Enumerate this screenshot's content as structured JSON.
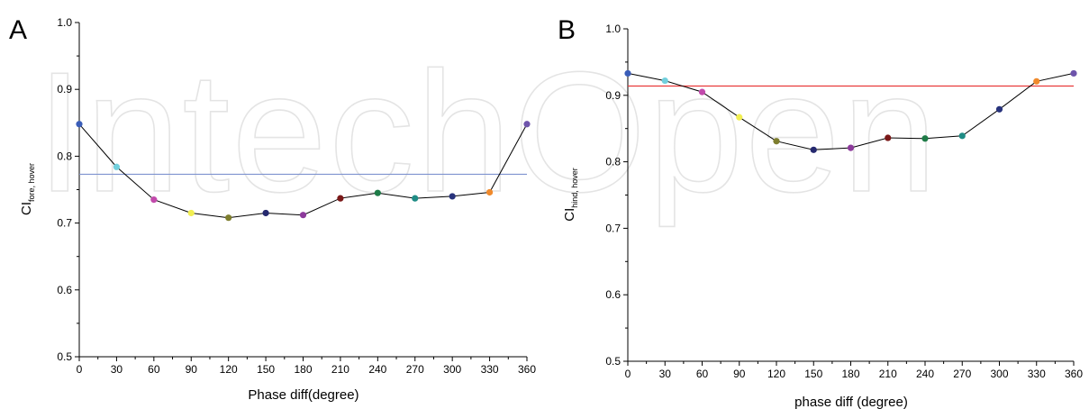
{
  "watermark": "IntechOpen",
  "chart_data": [
    {
      "panel": "A",
      "type": "line",
      "xlabel": "Phase diff(degree)",
      "ylabel_main": "CI",
      "ylabel_sub": "fore, hover",
      "xlim": [
        0,
        360
      ],
      "ylim": [
        0.5,
        1.0
      ],
      "xticks": [
        0,
        30,
        60,
        90,
        120,
        150,
        180,
        210,
        240,
        270,
        300,
        330,
        360
      ],
      "yticks": [
        "0.5",
        "0.6",
        "0.7",
        "0.8",
        "0.9",
        "1.0"
      ],
      "x": [
        0,
        30,
        60,
        90,
        120,
        150,
        180,
        210,
        240,
        270,
        300,
        330,
        360
      ],
      "y": [
        0.848,
        0.784,
        0.735,
        0.715,
        0.708,
        0.715,
        0.712,
        0.737,
        0.745,
        0.737,
        0.74,
        0.746,
        0.848
      ],
      "point_colors": [
        "#3a5db8",
        "#72d0dd",
        "#c24aac",
        "#f2ef52",
        "#7e7e2e",
        "#25296f",
        "#8c3a9b",
        "#7a1818",
        "#1e7b47",
        "#1f8c85",
        "#28337c",
        "#f08a2c",
        "#6e54ab"
      ],
      "line_color": "#000000",
      "reference_line": {
        "y": 0.773,
        "color": "#7f94d0"
      },
      "grid": false
    },
    {
      "panel": "B",
      "type": "line",
      "xlabel": "phase diff (degree)",
      "ylabel_main": "CI",
      "ylabel_sub": "hind, hover",
      "xlim": [
        0,
        360
      ],
      "ylim": [
        0.5,
        1.0
      ],
      "xticks": [
        0,
        30,
        60,
        90,
        120,
        150,
        180,
        210,
        240,
        270,
        300,
        330,
        360
      ],
      "yticks": [
        "0.5",
        "0.6",
        "0.7",
        "0.8",
        "0.9",
        "1.0"
      ],
      "x": [
        0,
        30,
        60,
        90,
        120,
        150,
        180,
        210,
        240,
        270,
        300,
        330,
        360
      ],
      "y": [
        0.933,
        0.922,
        0.905,
        0.867,
        0.831,
        0.818,
        0.821,
        0.836,
        0.835,
        0.839,
        0.879,
        0.921,
        0.933
      ],
      "point_colors": [
        "#3a5db8",
        "#72d0dd",
        "#c24aac",
        "#f2ef52",
        "#7e7e2e",
        "#25296f",
        "#8c3a9b",
        "#7a1818",
        "#1e7b47",
        "#1f8c85",
        "#28337c",
        "#f08a2c",
        "#6e54ab"
      ],
      "line_color": "#000000",
      "reference_line": {
        "y": 0.914,
        "color": "#e83a3a"
      },
      "grid": false
    }
  ]
}
